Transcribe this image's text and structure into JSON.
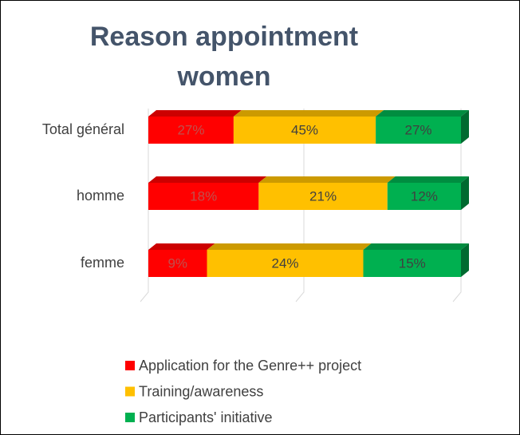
{
  "chart_data": {
    "type": "bar",
    "orientation": "horizontal",
    "stack": "percent",
    "title": "Reason appointment women",
    "categories": [
      "Total général",
      "homme",
      "femme"
    ],
    "series": [
      {
        "name": "Application for the Genre++ project",
        "color": "#ff0000",
        "values": [
          27,
          18,
          9
        ],
        "value_labels": [
          "27%",
          "18%",
          "9%"
        ]
      },
      {
        "name": "Training/awareness",
        "color": "#ffc000",
        "values": [
          45,
          21,
          24
        ],
        "value_labels": [
          "45%",
          "21%",
          "24%"
        ]
      },
      {
        "name": "Participants' initiative",
        "color": "#00b050",
        "values": [
          27,
          12,
          15
        ],
        "value_labels": [
          "27%",
          "12%",
          "15%"
        ]
      }
    ],
    "legend": "bottom"
  }
}
